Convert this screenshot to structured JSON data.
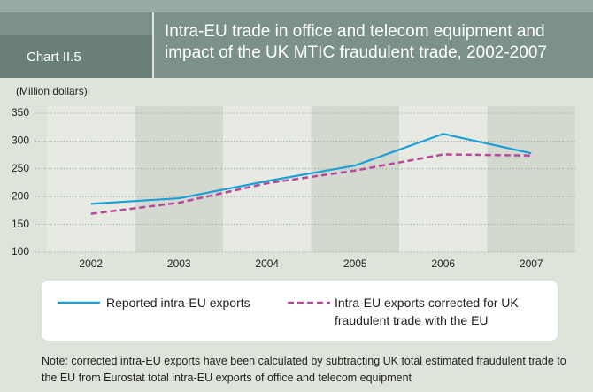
{
  "chart_label": "Chart II.5",
  "chart_data": {
    "type": "line",
    "title": [
      "Intra-EU trade in office and telecom equipment and",
      "impact of the UK MTIC fraudulent trade, 2002-2007"
    ],
    "y_axis_label": "(Million dollars)",
    "categories": [
      "2002",
      "2003",
      "2004",
      "2005",
      "2006",
      "2007"
    ],
    "series": [
      {
        "name": "Reported intra-EU exports",
        "color": "#1aa0d8",
        "dash": false,
        "values": [
          187,
          197,
          228,
          256,
          313,
          278
        ]
      },
      {
        "name": "Intra-EU exports corrected for UK fraudulent trade with the EU",
        "color": "#b8489a",
        "dash": true,
        "values": [
          169,
          189,
          224,
          247,
          276,
          274
        ]
      }
    ],
    "ylim": [
      100,
      350
    ],
    "yticks": [
      100,
      150,
      200,
      250,
      300,
      350
    ],
    "grid": true,
    "note": "Note: corrected intra-EU exports have been calculated by subtracting UK total estimated fraudulent trade to the EU from Eurostat total intra-EU exports of office and telecom equipment"
  }
}
